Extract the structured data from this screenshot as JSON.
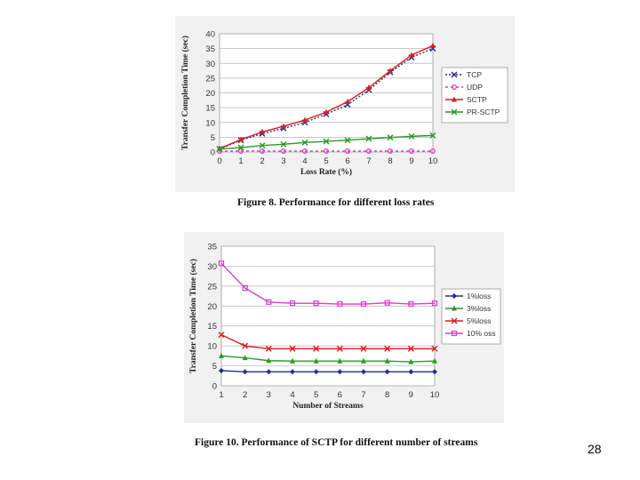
{
  "page_number": "28",
  "chart_data": [
    {
      "type": "line",
      "caption": "Figure 8. Performance for different loss rates",
      "xlabel": "Loss Rate (%)",
      "ylabel": "Transfer Completion Time (sec)",
      "x": [
        0,
        1,
        2,
        3,
        4,
        5,
        6,
        7,
        8,
        9,
        10
      ],
      "xlim": [
        0,
        10
      ],
      "ylim": [
        0,
        40
      ],
      "yticks": [
        0,
        5,
        10,
        15,
        20,
        25,
        30,
        35,
        40
      ],
      "grid": true,
      "legend_position": "right",
      "series": [
        {
          "name": "TCP",
          "values": [
            1,
            4,
            6.2,
            8,
            10,
            12.8,
            16,
            21,
            27,
            32,
            35
          ],
          "color": "#2a2a8a",
          "dash": "2,2",
          "marker": "x"
        },
        {
          "name": "UDP",
          "values": [
            0.3,
            0.3,
            0.3,
            0.3,
            0.3,
            0.3,
            0.3,
            0.3,
            0.3,
            0.3,
            0.3
          ],
          "color": "#d63cd0",
          "dash": "3,3",
          "marker": "o"
        },
        {
          "name": "SCTP",
          "values": [
            1.2,
            4.2,
            6.8,
            8.7,
            10.8,
            13.5,
            17,
            21.8,
            27.5,
            32.8,
            36
          ],
          "color": "#d62020",
          "dash": "",
          "marker": "triangle"
        },
        {
          "name": "PR-SCTP",
          "values": [
            1,
            1.5,
            2.2,
            2.6,
            3.2,
            3.6,
            4,
            4.5,
            4.9,
            5.3,
            5.6
          ],
          "color": "#2a9a2a",
          "dash": "",
          "marker": "x"
        }
      ]
    },
    {
      "type": "line",
      "caption": "Figure 10. Performance of SCTP for different number of streams",
      "xlabel": "Number of Streams",
      "ylabel": "Transfer Completion Time (sec)",
      "x": [
        1,
        2,
        3,
        4,
        5,
        6,
        7,
        8,
        9,
        10
      ],
      "xlim": [
        1,
        10
      ],
      "ylim": [
        0,
        35
      ],
      "yticks": [
        0,
        5,
        10,
        15,
        20,
        25,
        30,
        35
      ],
      "grid": true,
      "legend_position": "right",
      "series": [
        {
          "name": "1%loss",
          "values": [
            3.8,
            3.5,
            3.5,
            3.5,
            3.5,
            3.5,
            3.5,
            3.5,
            3.5,
            3.5
          ],
          "color": "#22308a",
          "marker": "diamond"
        },
        {
          "name": "3%loss",
          "values": [
            7.5,
            7,
            6.3,
            6.2,
            6.2,
            6.2,
            6.2,
            6.2,
            6,
            6.2
          ],
          "color": "#2a9a2a",
          "marker": "triangle"
        },
        {
          "name": "5%loss",
          "values": [
            12.8,
            10,
            9.3,
            9.3,
            9.3,
            9.3,
            9.3,
            9.3,
            9.3,
            9.3
          ],
          "color": "#d62020",
          "marker": "x"
        },
        {
          "name": "10% oss",
          "values": [
            30.7,
            24.5,
            21,
            20.7,
            20.7,
            20.5,
            20.5,
            20.8,
            20.5,
            20.7
          ],
          "color": "#d63cd0",
          "marker": "square"
        }
      ]
    }
  ]
}
